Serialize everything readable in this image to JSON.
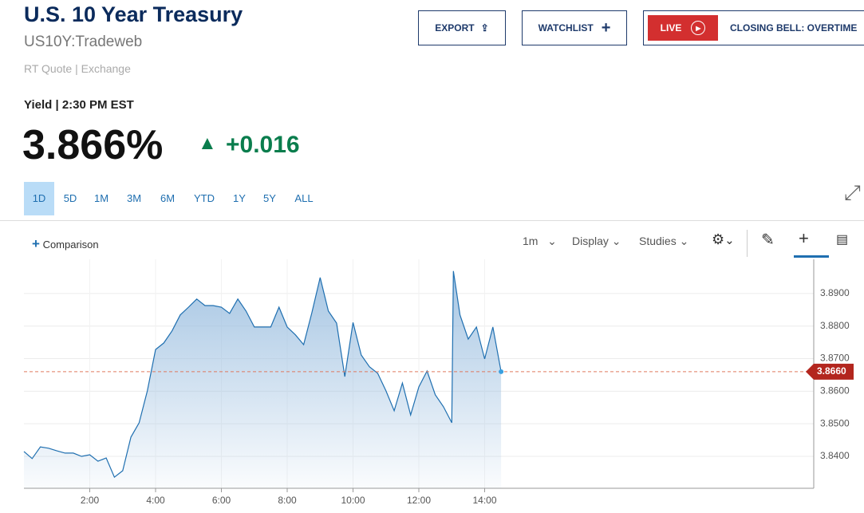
{
  "header": {
    "title": "U.S. 10 Year Treasury",
    "symbol": "US10Y:Tradeweb",
    "source": "RT Quote | Exchange"
  },
  "buttons": {
    "export": "EXPORT",
    "watchlist": "WATCHLIST",
    "live": "LIVE",
    "show": "CLOSING BELL: OVERTIME"
  },
  "quote": {
    "label": "Yield | 2:30 PM EST",
    "price": "3.866%",
    "change": "+0.016"
  },
  "ranges": [
    "1D",
    "5D",
    "1M",
    "3M",
    "6M",
    "YTD",
    "1Y",
    "5Y",
    "ALL"
  ],
  "toolbar": {
    "comparison": "Comparison",
    "interval": "1m",
    "display": "Display",
    "studies": "Studies"
  },
  "chart_data": {
    "type": "area",
    "color": "#1f6fb0",
    "x": [
      0,
      0.25,
      0.5,
      0.75,
      1,
      1.25,
      1.5,
      1.75,
      2,
      2.25,
      2.5,
      2.75,
      3,
      3.25,
      3.5,
      3.75,
      4,
      4.25,
      4.5,
      4.75,
      5,
      5.25,
      5.5,
      5.75,
      6,
      6.25,
      6.5,
      6.75,
      7,
      7.25,
      7.5,
      7.75,
      8,
      8.25,
      8.5,
      8.75,
      9,
      9.25,
      9.5,
      9.75,
      10,
      10.25,
      10.5,
      10.75,
      11,
      11.25,
      11.5,
      11.75,
      12,
      12.25,
      12.5,
      12.75,
      13,
      13.05,
      13.25,
      13.5,
      13.75,
      14,
      14.25,
      14.5
    ],
    "values": [
      3.8415,
      3.8393,
      3.8429,
      3.8425,
      3.8417,
      3.841,
      3.841,
      3.84,
      3.8405,
      3.8385,
      3.8395,
      3.8336,
      3.8356,
      3.8459,
      3.8503,
      3.8601,
      3.8728,
      3.8748,
      3.8785,
      3.8834,
      3.8858,
      3.8883,
      3.8863,
      3.8863,
      3.8858,
      3.8839,
      3.8883,
      3.8846,
      3.8797,
      3.8797,
      3.8797,
      3.8858,
      3.8797,
      3.8773,
      3.8743,
      3.8841,
      3.8949,
      3.8846,
      3.8809,
      3.8645,
      3.8811,
      3.8711,
      3.8675,
      3.8655,
      3.8601,
      3.854,
      3.8625,
      3.8527,
      3.8613,
      3.8662,
      3.8589,
      3.8552,
      3.8503,
      3.8969,
      3.8834,
      3.876,
      3.8797,
      3.8699,
      3.8797,
      3.866
    ],
    "xlim": [
      0,
      24
    ],
    "xticks": [
      {
        "value": 2,
        "label": "2:00"
      },
      {
        "value": 4,
        "label": "4:00"
      },
      {
        "value": 6,
        "label": "6:00"
      },
      {
        "value": 8,
        "label": "8:00"
      },
      {
        "value": 10,
        "label": "10:00"
      },
      {
        "value": 12,
        "label": "12:00"
      },
      {
        "value": 14,
        "label": "14:00"
      }
    ],
    "ylim": [
      3.8302,
      3.9005
    ],
    "yticks": [
      {
        "value": 3.84,
        "label": "3.8400"
      },
      {
        "value": 3.85,
        "label": "3.8500"
      },
      {
        "value": 3.86,
        "label": "3.8600"
      },
      {
        "value": 3.87,
        "label": "3.8700"
      },
      {
        "value": 3.88,
        "label": "3.8800"
      },
      {
        "value": 3.89,
        "label": "3.8900"
      }
    ],
    "current": {
      "value": 3.866,
      "label": "3.8660"
    },
    "grid": true
  }
}
